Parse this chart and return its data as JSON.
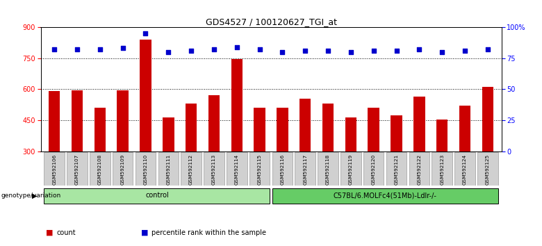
{
  "title": "GDS4527 / 100120627_TGI_at",
  "samples": [
    "GSM592106",
    "GSM592107",
    "GSM592108",
    "GSM592109",
    "GSM592110",
    "GSM592111",
    "GSM592112",
    "GSM592113",
    "GSM592114",
    "GSM592115",
    "GSM592116",
    "GSM592117",
    "GSM592118",
    "GSM592119",
    "GSM592120",
    "GSM592121",
    "GSM592122",
    "GSM592123",
    "GSM592124",
    "GSM592125"
  ],
  "counts": [
    590,
    595,
    510,
    595,
    840,
    465,
    530,
    570,
    745,
    510,
    510,
    555,
    530,
    465,
    510,
    475,
    565,
    455,
    520,
    610
  ],
  "percentile_ranks": [
    82,
    82,
    82,
    83,
    95,
    80,
    81,
    82,
    84,
    82,
    80,
    81,
    81,
    80,
    81,
    81,
    82,
    80,
    81,
    82
  ],
  "groups": [
    {
      "label": "control",
      "start": 0,
      "end": 10,
      "color": "#a8e6a3"
    },
    {
      "label": "C57BL/6.MOLFc4(51Mb)-Ldlr-/-",
      "start": 10,
      "end": 20,
      "color": "#66CC66"
    }
  ],
  "left_ylim": [
    300,
    900
  ],
  "left_yticks": [
    300,
    450,
    600,
    750,
    900
  ],
  "right_ylim": [
    0,
    100
  ],
  "right_yticks": [
    0,
    25,
    50,
    75,
    100
  ],
  "right_yticklabels": [
    "0",
    "25",
    "50",
    "75",
    "100%"
  ],
  "bar_color": "#CC0000",
  "dot_color": "#0000CC",
  "title_fontsize": 9,
  "tick_fontsize": 7,
  "genotype_label": "genotype/variation"
}
